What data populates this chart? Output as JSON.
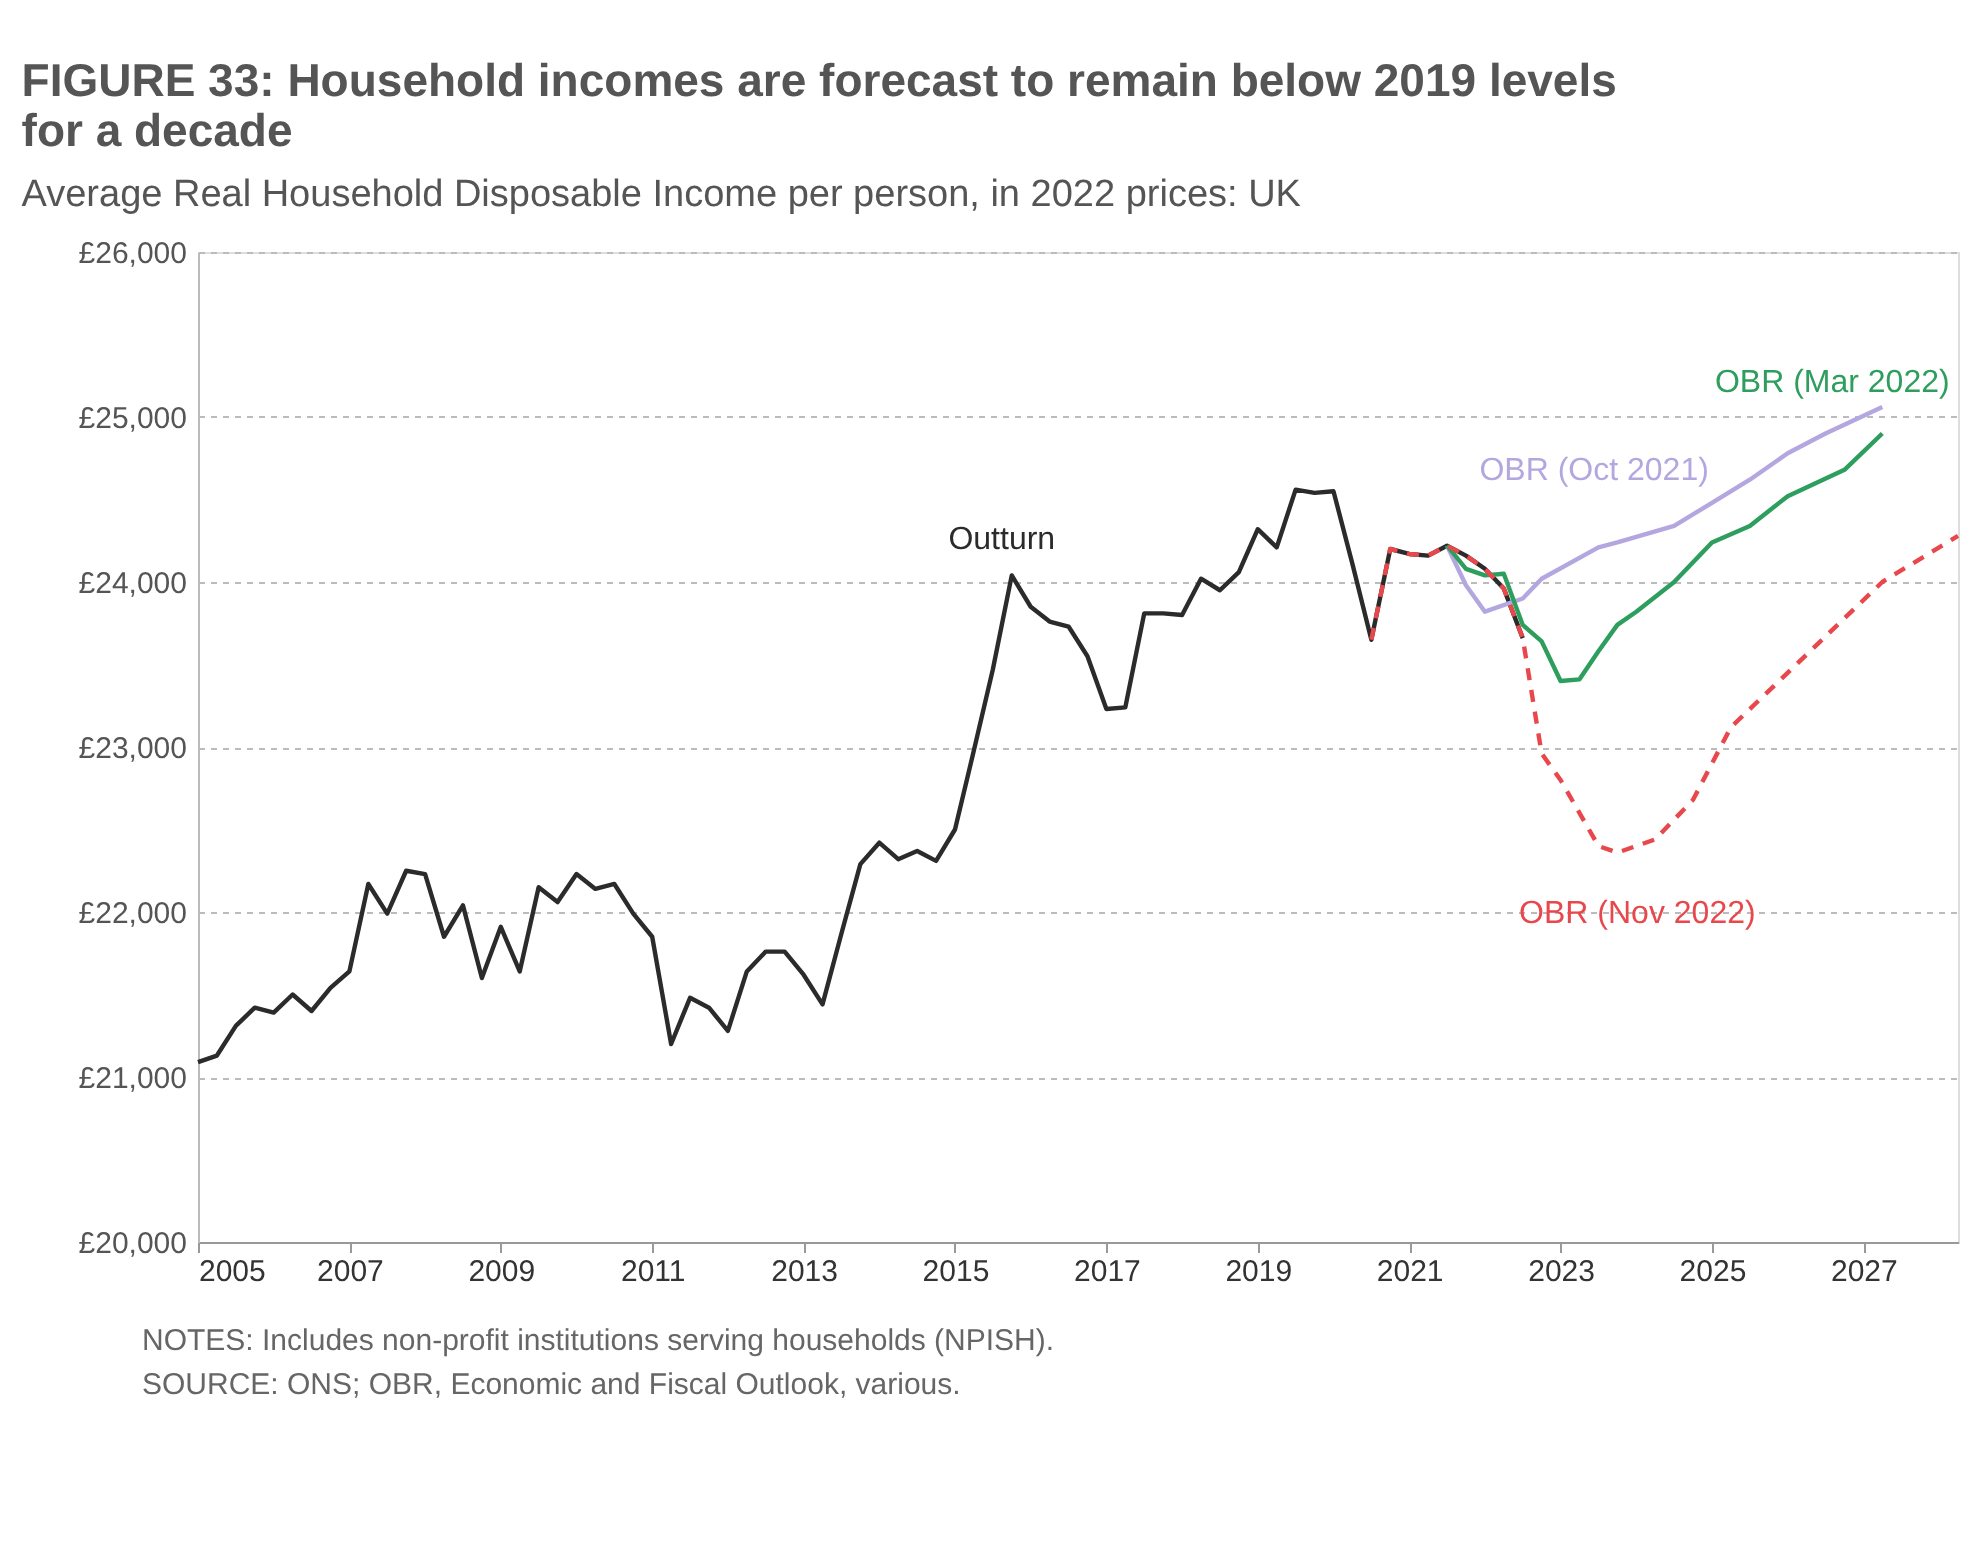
{
  "chart_data": {
    "type": "line",
    "title": "FIGURE 33: Household incomes are forecast to remain below 2019 levels for a decade",
    "subtitle": "Average Real Household Disposable Income per person, in 2022 prices: UK",
    "series": [
      {
        "name": "Outturn",
        "color": "#2b2b2b",
        "line_style": "solid",
        "x": [
          2005,
          2005.25,
          2005.5,
          2005.75,
          2006,
          2006.25,
          2006.5,
          2006.75,
          2007,
          2007.25,
          2007.5,
          2007.75,
          2008,
          2008.25,
          2008.5,
          2008.75,
          2009,
          2009.25,
          2009.5,
          2009.75,
          2010,
          2010.25,
          2010.5,
          2010.75,
          2011,
          2011.25,
          2011.5,
          2011.75,
          2012,
          2012.25,
          2012.5,
          2012.75,
          2013,
          2013.25,
          2013.5,
          2013.75,
          2014,
          2014.25,
          2014.5,
          2014.75,
          2015,
          2015.25,
          2015.5,
          2015.75,
          2016,
          2016.25,
          2016.5,
          2016.75,
          2017,
          2017.25,
          2017.5,
          2017.75,
          2018,
          2018.25,
          2018.5,
          2018.75,
          2019,
          2019.25,
          2019.5,
          2019.75,
          2020,
          2020.25,
          2020.5,
          2020.75,
          2021,
          2021.25,
          2021.5,
          2021.75,
          2022,
          2022.25,
          2022.5
        ],
        "values": [
          21090,
          21130,
          21310,
          21420,
          21390,
          21500,
          21400,
          21540,
          21640,
          22170,
          21990,
          22250,
          22230,
          21850,
          22040,
          21600,
          21910,
          21640,
          22150,
          22060,
          22230,
          22140,
          22170,
          21990,
          21850,
          21200,
          21480,
          21420,
          21280,
          21640,
          21760,
          21760,
          21620,
          21440,
          21870,
          22290,
          22420,
          22320,
          22370,
          22310,
          22500,
          22980,
          23470,
          24040,
          23850,
          23760,
          23730,
          23550,
          23230,
          23240,
          23810,
          23810,
          23800,
          24020,
          23950,
          24060,
          24320,
          24210,
          24560,
          24540,
          24550,
          24110,
          23650,
          24200,
          24170,
          24160,
          24220,
          24160,
          24080,
          23960,
          23660
        ]
      },
      {
        "name": "OBR (Oct 2021)",
        "color": "#b4a7e0",
        "line_style": "solid",
        "x": [
          2021.5,
          2021.75,
          2022,
          2022.5,
          2022.75,
          2023.5,
          2023.75,
          2024.5,
          2025,
          2025.5,
          2026,
          2026.5,
          2027.25
        ],
        "values": [
          24220,
          23980,
          23820,
          23900,
          24020,
          24210,
          24240,
          24340,
          24480,
          24620,
          24780,
          24900,
          25060
        ]
      },
      {
        "name": "OBR (Mar 2022)",
        "color": "#2e9e5e",
        "line_style": "solid",
        "x": [
          2021.5,
          2021.75,
          2022,
          2022.25,
          2022.5,
          2022.75,
          2023,
          2023.25,
          2023.5,
          2023.75,
          2024,
          2024.5,
          2025,
          2025.5,
          2026,
          2026.75,
          2027.25
        ],
        "values": [
          24220,
          24080,
          24040,
          24050,
          23740,
          23640,
          23400,
          23410,
          23580,
          23740,
          23820,
          24000,
          24240,
          24340,
          24520,
          24680,
          24900
        ]
      },
      {
        "name": "OBR (Nov 2022)",
        "color": "#e8474c",
        "line_style": "dashed",
        "x": [
          2020.5,
          2020.75,
          2021,
          2021.25,
          2021.5,
          2021.75,
          2022,
          2022.25,
          2022.5,
          2022.75,
          2023,
          2023.5,
          2023.75,
          2024.25,
          2024.75,
          2025.25,
          2026.25,
          2027.25,
          2028.25
        ],
        "values": [
          23650,
          24200,
          24170,
          24160,
          24220,
          24160,
          24080,
          23960,
          23660,
          22960,
          22800,
          22400,
          22360,
          22440,
          22680,
          23120,
          23560,
          24000,
          24280
        ]
      }
    ],
    "xlim": [
      2005,
      2028.25
    ],
    "xticks": [
      2005,
      2007,
      2009,
      2011,
      2013,
      2015,
      2017,
      2019,
      2021,
      2023,
      2025,
      2027
    ],
    "ylim": [
      20000,
      26000
    ],
    "yticks": [
      {
        "value": 20000,
        "label": "£20,000"
      },
      {
        "value": 21000,
        "label": "£21,000"
      },
      {
        "value": 22000,
        "label": "£22,000"
      },
      {
        "value": 23000,
        "label": "£23,000"
      },
      {
        "value": 24000,
        "label": "£24,000"
      },
      {
        "value": 25000,
        "label": "£25,000"
      },
      {
        "value": 26000,
        "label": "£26,000"
      }
    ],
    "grid": "y",
    "marker": "none",
    "annotations": [
      "NOTES: Includes non-profit institutions serving households (NPISH).",
      "SOURCE: ONS; OBR, Economic and Fiscal Outlook, various."
    ]
  }
}
